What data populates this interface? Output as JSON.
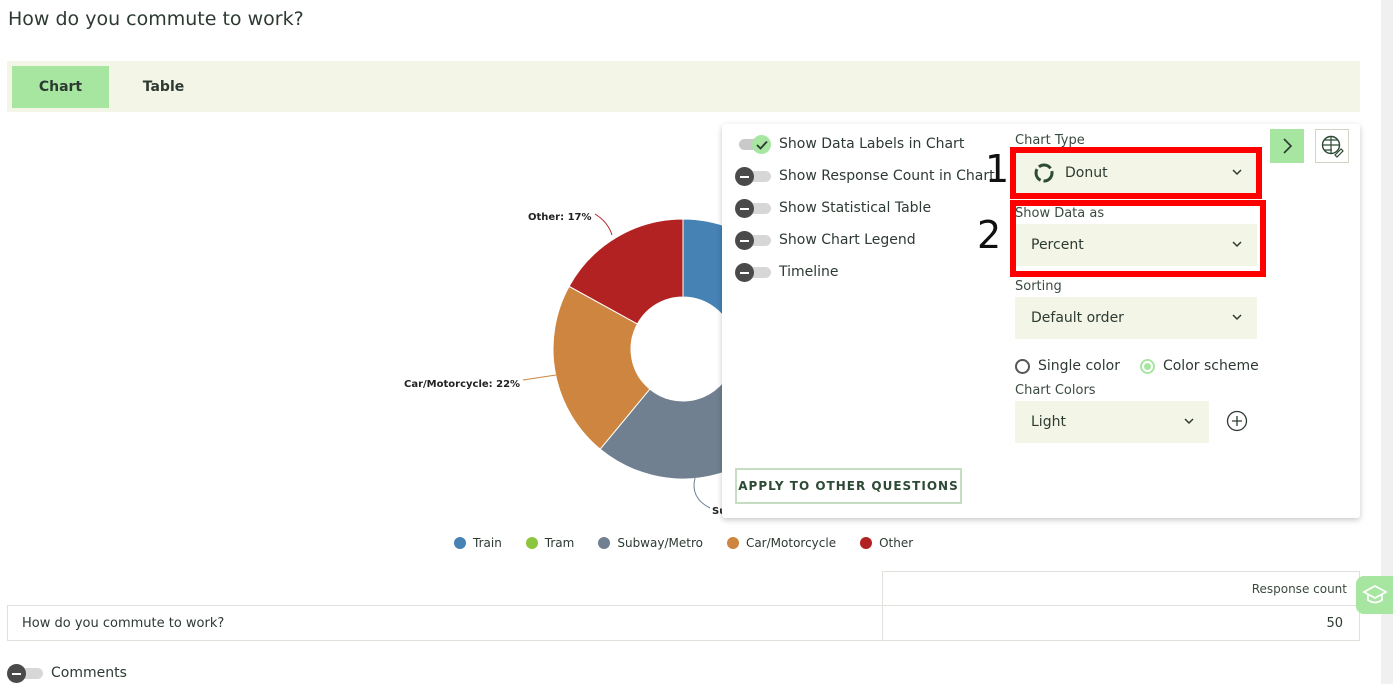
{
  "question_title": "How do you commute to work?",
  "tabs": [
    {
      "label": "Chart",
      "active": true
    },
    {
      "label": "Table",
      "active": false
    }
  ],
  "chart_data": {
    "type": "pie",
    "variant": "donut",
    "categories": [
      "Train",
      "Tram",
      "Subway/Metro",
      "Car/Motorcycle",
      "Other"
    ],
    "values": [
      null,
      null,
      null,
      22,
      17
    ],
    "colors": [
      "#4682b4",
      "#8cc63f",
      "#708090",
      "#cd853f",
      "#b22222"
    ],
    "visible_data_labels": [
      {
        "category": "Other",
        "text": "Other: 17%"
      },
      {
        "category": "Car/Motorcycle",
        "text": "Car/Motorcycle: 22%"
      },
      {
        "category": "Subway/Metro",
        "text": "Su"
      }
    ],
    "legend": [
      "Train",
      "Tram",
      "Subway/Metro",
      "Car/Motorcycle",
      "Other"
    ],
    "legend_position": "bottom"
  },
  "panel": {
    "toggles": [
      {
        "label": "Show Data Labels in Chart",
        "on": true
      },
      {
        "label": "Show Response Count in Chart",
        "on": false
      },
      {
        "label": "Show Statistical Table",
        "on": false
      },
      {
        "label": "Show Chart Legend",
        "on": false
      },
      {
        "label": "Timeline",
        "on": false
      }
    ],
    "chart_type_label": "Chart Type",
    "chart_type_value": "Donut",
    "show_data_as_label": "Show Data as",
    "show_data_as_value": "Percent",
    "sorting_label": "Sorting",
    "sorting_value": "Default order",
    "color_mode_options": [
      "Single color",
      "Color scheme"
    ],
    "color_mode_selected": "Color scheme",
    "chart_colors_label": "Chart Colors",
    "chart_colors_value": "Light",
    "apply_button": "APPLY TO OTHER QUESTIONS",
    "annotation_1": "1",
    "annotation_2": "2",
    "highlight_color": "#ff0000"
  },
  "stats": {
    "header": "Response count",
    "question": "How do you commute to work?",
    "count": "50"
  },
  "comments_label": "Comments",
  "accent_color": "#a6e6a0"
}
